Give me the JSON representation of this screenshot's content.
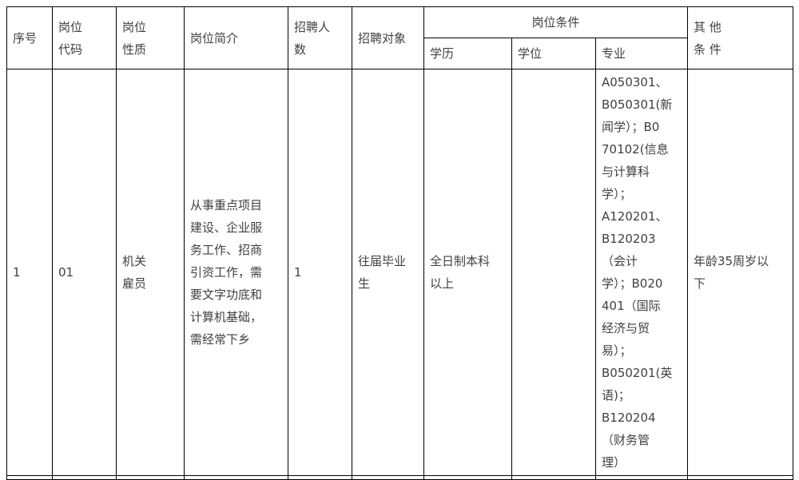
{
  "table": {
    "header": {
      "col_xuhao": "序号",
      "col_gangwei_daima": "岗位\n代码",
      "col_gangwei_xingzhi": "岗位\n性质",
      "col_gangwei_jianjie": "岗位简介",
      "col_zhaopin_renshu": "招聘人\n数",
      "col_zhaopin_duixiang": "招聘对象",
      "col_gangwei_tiaojian": "岗位条件",
      "col_xueli": "学历",
      "col_xuewei": "学位",
      "col_zhuanye": "专业",
      "col_qita_tiaojian": "其 他\n条 件"
    },
    "rows": [
      {
        "xuhao": "1",
        "gangwei_daima": "01",
        "gangwei_xingzhi": "机关\n雇员",
        "gangwei_jianjie": "从事重点项目\n建设、企业服\n务工作、招商\n引资工作，需\n要文字功底和\n计算机基础，\n需经常下乡",
        "zhaopin_renshu": "1",
        "zhaopin_duixiang": "往届毕业\n生",
        "xueli": "全日制本科\n以上",
        "xuewei": "",
        "zhuanye": "A050301、\nB050301(新\n闻学）；B0\n70102(信息\n与计算科\n学）；\nA120201、\nB120203\n（会计\n学）；B020\n401（国际\n经济与贸\n易）；\nB050201(英\n语)；\nB120204\n（财务管\n理）",
        "qita_tiaojian": "年龄35周岁以\n下"
      }
    ]
  },
  "colors": {
    "border": "#000000",
    "text": "#404040",
    "background": "#ffffff"
  }
}
